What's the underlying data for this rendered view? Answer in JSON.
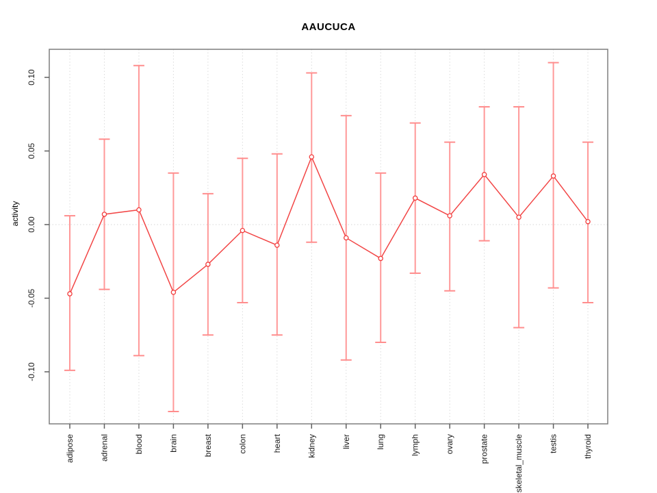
{
  "chart_data": {
    "type": "line",
    "error_bars": true,
    "title": "AAUCUCA",
    "xlabel": "",
    "ylabel": "activity",
    "categories": [
      "adipose",
      "adrenal",
      "blood",
      "brain",
      "breast",
      "colon",
      "heart",
      "kidney",
      "liver",
      "lung",
      "lymph",
      "ovary",
      "prostate",
      "skeletal_muscle",
      "testis",
      "thyroid"
    ],
    "series": [
      {
        "name": "activity",
        "values": [
          -0.047,
          0.007,
          0.01,
          -0.046,
          -0.027,
          -0.004,
          -0.014,
          0.046,
          -0.009,
          -0.023,
          0.018,
          0.006,
          0.034,
          0.005,
          0.033,
          0.002
        ],
        "error_high": [
          0.006,
          0.058,
          0.108,
          0.035,
          0.021,
          0.045,
          0.048,
          0.103,
          0.074,
          0.035,
          0.069,
          0.056,
          0.08,
          0.08,
          0.11,
          0.056
        ],
        "error_low": [
          -0.099,
          -0.044,
          -0.089,
          -0.127,
          -0.075,
          -0.053,
          -0.075,
          -0.012,
          -0.092,
          -0.08,
          -0.033,
          -0.045,
          -0.011,
          -0.07,
          -0.043,
          -0.053
        ]
      }
    ],
    "yticks": [
      0.1,
      0.05,
      0.0,
      -0.05,
      -0.1
    ],
    "ytick_labels": [
      "0.10",
      "0.05",
      "0.00",
      "-0.05",
      "-0.10"
    ],
    "ylim": [
      -0.135,
      0.119
    ],
    "grid": {
      "vertical_dotted_per_category": true,
      "horizontal_zero_line_dotted": true
    },
    "legend": "none",
    "marker": "open-circle",
    "colors": {
      "point": "#f23c3c",
      "line": "#f24545",
      "error_bar": "#ff9898",
      "error_cap": "#ff8d8d",
      "grid": "#dadada",
      "zero_line": "#d6d6d6",
      "box": "#7d7d7d",
      "tick": "#5f5f5f",
      "text": "#1a1a1a"
    }
  }
}
